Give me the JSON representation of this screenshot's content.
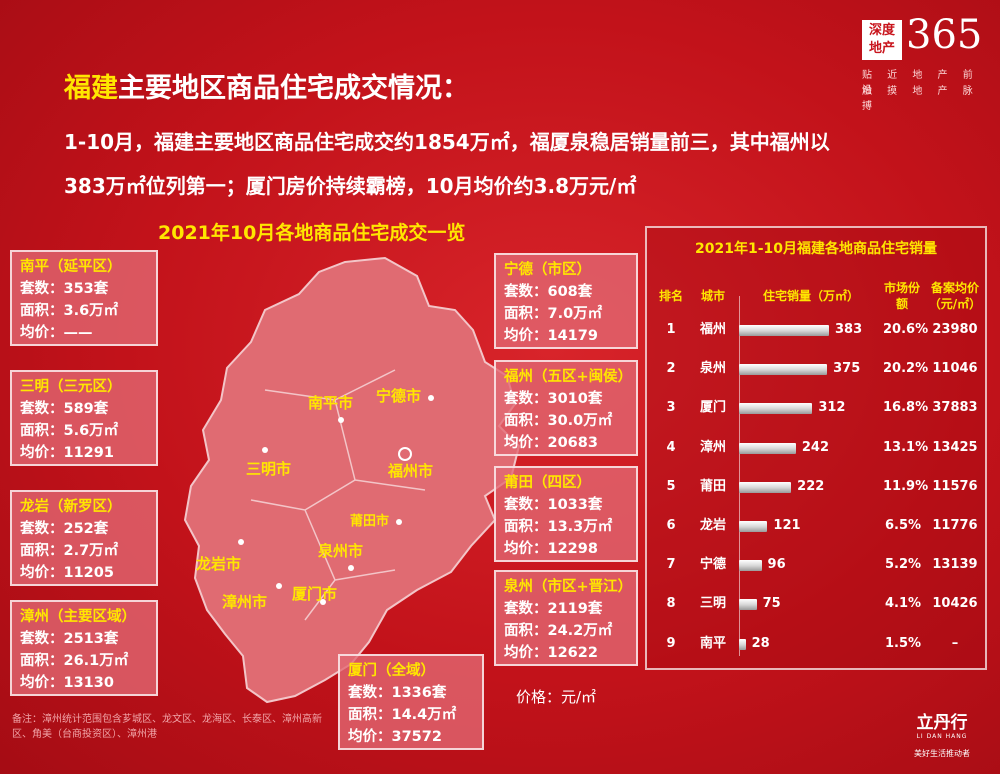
{
  "logo": {
    "box_top": "深度",
    "box_bottom": "地产",
    "number": "365",
    "line1": "贴 近 地 产 前 沿",
    "line2": "触 摸 地 产 脉 搏"
  },
  "title": {
    "highlight": "福建",
    "rest": "主要地区商品住宅成交情况："
  },
  "summary": {
    "line1": "1-10月，福建主要地区商品住宅成交约1854万㎡，福厦泉稳居销量前三，其中福州以",
    "line2": "383万㎡位列第一；厦门房价持续霸榜，10月均价约3.8万元/㎡"
  },
  "map_title": "2021年10月各地商品住宅成交一览",
  "cards": [
    {
      "title": "南平（延平区）",
      "l1": "套数：353套",
      "l2": "面积：3.6万㎡",
      "l3": "均价：——"
    },
    {
      "title": "三明（三元区）",
      "l1": "套数：589套",
      "l2": "面积：5.6万㎡",
      "l3": "均价：11291"
    },
    {
      "title": "龙岩（新罗区）",
      "l1": "套数：252套",
      "l2": "面积：2.7万㎡",
      "l3": "均价：11205"
    },
    {
      "title": "漳州（主要区域）",
      "l1": "套数：2513套",
      "l2": "面积：26.1万㎡",
      "l3": "均价：13130"
    },
    {
      "title": "宁德（市区）",
      "l1": "套数：608套",
      "l2": "面积：7.0万㎡",
      "l3": "均价：14179"
    },
    {
      "title": "福州（五区+闽侯）",
      "l1": "套数：3010套",
      "l2": "面积：30.0万㎡",
      "l3": "均价：20683"
    },
    {
      "title": "莆田（四区）",
      "l1": "套数：1033套",
      "l2": "面积：13.3万㎡",
      "l3": "均价：12298"
    },
    {
      "title": "泉州（市区+晋江）",
      "l1": "套数：2119套",
      "l2": "面积：24.2万㎡",
      "l3": "均价：12622"
    },
    {
      "title": "厦门（全域）",
      "l1": "套数：1336套",
      "l2": "面积：14.4万㎡",
      "l3": "均价：37572"
    }
  ],
  "city_labels": [
    "南平市",
    "宁德市",
    "三明市",
    "福州市",
    "莆田市",
    "泉州市",
    "龙岩市",
    "漳州市",
    "厦门市"
  ],
  "unit": "价格：元/㎡",
  "note": "备注：漳州统计范围包含芗城区、龙文区、龙海区、长泰区、漳州高新区、角美（台商投资区）、漳州港",
  "brand": {
    "name": "立丹行",
    "en": "LI DAN HANG",
    "slogan": "美好生活推动者"
  },
  "chart_data": {
    "type": "table",
    "title": "2021年1-10月福建各地商品住宅销量",
    "columns": [
      "排名",
      "城市",
      "住宅销量（万㎡）",
      "市场份额",
      "备案均价（元/㎡）"
    ],
    "rows": [
      {
        "rank": "1",
        "city": "福州",
        "sales": 383,
        "share": "20.6%",
        "price": "23980"
      },
      {
        "rank": "2",
        "city": "泉州",
        "sales": 375,
        "share": "20.2%",
        "price": "11046"
      },
      {
        "rank": "3",
        "city": "厦门",
        "sales": 312,
        "share": "16.8%",
        "price": "37883"
      },
      {
        "rank": "4",
        "city": "漳州",
        "sales": 242,
        "share": "13.1%",
        "price": "13425"
      },
      {
        "rank": "5",
        "city": "莆田",
        "sales": 222,
        "share": "11.9%",
        "price": "11576"
      },
      {
        "rank": "6",
        "city": "龙岩",
        "sales": 121,
        "share": "6.5%",
        "price": "11776"
      },
      {
        "rank": "7",
        "city": "宁德",
        "sales": 96,
        "share": "5.2%",
        "price": "13139"
      },
      {
        "rank": "8",
        "city": "三明",
        "sales": 75,
        "share": "4.1%",
        "price": "10426"
      },
      {
        "rank": "9",
        "city": "南平",
        "sales": 28,
        "share": "1.5%",
        "price": "–"
      }
    ]
  }
}
